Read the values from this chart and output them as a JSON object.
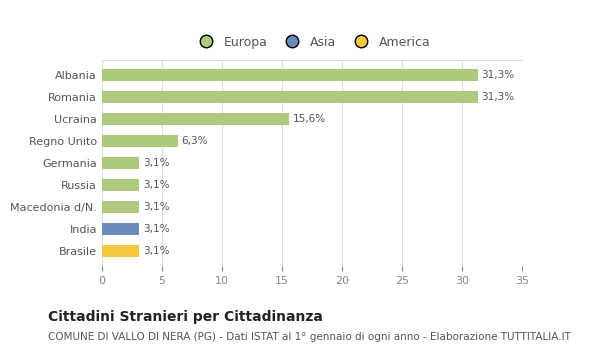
{
  "categories": [
    "Albania",
    "Romania",
    "Ucraina",
    "Regno Unito",
    "Germania",
    "Russia",
    "Macedonia d/N.",
    "India",
    "Brasile"
  ],
  "values": [
    31.3,
    31.3,
    15.6,
    6.3,
    3.1,
    3.1,
    3.1,
    3.1,
    3.1
  ],
  "labels": [
    "31,3%",
    "31,3%",
    "15,6%",
    "6,3%",
    "3,1%",
    "3,1%",
    "3,1%",
    "3,1%",
    "3,1%"
  ],
  "bar_colors": [
    "#adc97e",
    "#adc97e",
    "#adc97e",
    "#adc97e",
    "#adc97e",
    "#adc97e",
    "#adc97e",
    "#6b8cba",
    "#f5c842"
  ],
  "legend_labels": [
    "Europa",
    "Asia",
    "America"
  ],
  "legend_colors": [
    "#adc97e",
    "#6b8cba",
    "#f5c842"
  ],
  "title": "Cittadini Stranieri per Cittadinanza",
  "subtitle": "COMUNE DI VALLO DI NERA (PG) - Dati ISTAT al 1° gennaio di ogni anno - Elaborazione TUTTITALIA.IT",
  "xlim": [
    0,
    35
  ],
  "xticks": [
    0,
    5,
    10,
    15,
    20,
    25,
    30,
    35
  ],
  "background_color": "#ffffff",
  "plot_bg_color": "#ffffff",
  "grid_color": "#dddddd",
  "bar_height": 0.55,
  "title_fontsize": 10,
  "subtitle_fontsize": 7.5,
  "label_fontsize": 7.5,
  "tick_fontsize": 8,
  "legend_fontsize": 9
}
